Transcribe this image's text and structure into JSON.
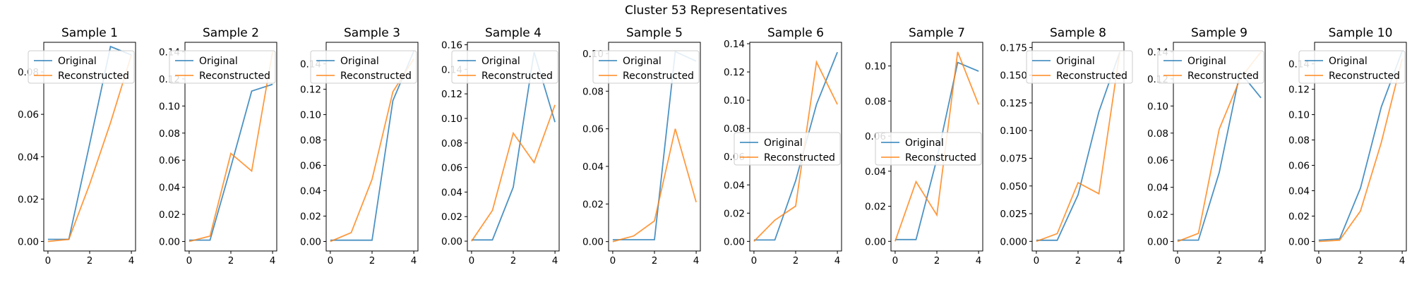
{
  "figure_title": "Cluster 53 Representatives",
  "colors": {
    "original": "#1f77b4",
    "reconstructed": "#ff7f0e"
  },
  "chart_data": [
    {
      "type": "line",
      "title": "Sample 1",
      "legend_placement": "upper-left",
      "xlim": [
        -0.2,
        4.2
      ],
      "ylim": [
        -0.0045,
        0.094
      ],
      "x_ticks": [
        0,
        2,
        4
      ],
      "y_ticks": [
        "0.00",
        "0.02",
        "0.04",
        "0.06",
        "0.08"
      ],
      "x": [
        0,
        1,
        2,
        3,
        4
      ],
      "series": [
        {
          "name": "Original",
          "values": [
            0.001,
            0.001,
            0.046,
            0.092,
            0.088
          ]
        },
        {
          "name": "Reconstructed",
          "values": [
            0.0,
            0.001,
            0.027,
            0.056,
            0.088
          ]
        }
      ]
    },
    {
      "type": "line",
      "title": "Sample 2",
      "legend_placement": "upper-left",
      "xlim": [
        -0.2,
        4.2
      ],
      "ylim": [
        -0.007,
        0.147
      ],
      "x_ticks": [
        0,
        2,
        4
      ],
      "y_ticks": [
        "0.00",
        "0.02",
        "0.04",
        "0.06",
        "0.08",
        "0.10",
        "0.12",
        "0.14"
      ],
      "x": [
        0,
        1,
        2,
        3,
        4
      ],
      "series": [
        {
          "name": "Original",
          "values": [
            0.001,
            0.001,
            0.055,
            0.111,
            0.116
          ]
        },
        {
          "name": "Reconstructed",
          "values": [
            0.0,
            0.004,
            0.065,
            0.052,
            0.14
          ]
        }
      ]
    },
    {
      "type": "line",
      "title": "Sample 3",
      "legend_placement": "upper-left",
      "xlim": [
        -0.2,
        4.2
      ],
      "ylim": [
        -0.0075,
        0.157
      ],
      "x_ticks": [
        0,
        2,
        4
      ],
      "y_ticks": [
        "0.00",
        "0.02",
        "0.04",
        "0.06",
        "0.08",
        "0.10",
        "0.12",
        "0.14"
      ],
      "x": [
        0,
        1,
        2,
        3,
        4
      ],
      "series": [
        {
          "name": "Original",
          "values": [
            0.001,
            0.001,
            0.001,
            0.111,
            0.15
          ]
        },
        {
          "name": "Reconstructed",
          "values": [
            0.0,
            0.007,
            0.049,
            0.118,
            0.144
          ]
        }
      ]
    },
    {
      "type": "line",
      "title": "Sample 4",
      "legend_placement": "upper-left",
      "xlim": [
        -0.2,
        4.2
      ],
      "ylim": [
        -0.008,
        0.162
      ],
      "x_ticks": [
        0,
        2,
        4
      ],
      "y_ticks": [
        "0.00",
        "0.02",
        "0.04",
        "0.06",
        "0.08",
        "0.10",
        "0.12",
        "0.14",
        "0.16"
      ],
      "x": [
        0,
        1,
        2,
        3,
        4
      ],
      "series": [
        {
          "name": "Original",
          "values": [
            0.001,
            0.001,
            0.044,
            0.154,
            0.097
          ]
        },
        {
          "name": "Reconstructed",
          "values": [
            0.0,
            0.025,
            0.088,
            0.064,
            0.111
          ]
        }
      ]
    },
    {
      "type": "line",
      "title": "Sample 5",
      "legend_placement": "upper-left",
      "xlim": [
        -0.2,
        4.2
      ],
      "ylim": [
        -0.005,
        0.106
      ],
      "x_ticks": [
        0,
        2,
        4
      ],
      "y_ticks": [
        "0.00",
        "0.02",
        "0.04",
        "0.06",
        "0.08",
        "0.10"
      ],
      "x": [
        0,
        1,
        2,
        3,
        4
      ],
      "series": [
        {
          "name": "Original",
          "values": [
            0.001,
            0.001,
            0.001,
            0.101,
            0.096
          ]
        },
        {
          "name": "Reconstructed",
          "values": [
            0.0,
            0.003,
            0.011,
            0.06,
            0.021
          ]
        }
      ]
    },
    {
      "type": "line",
      "title": "Sample 6",
      "legend_placement": "center-left",
      "xlim": [
        -0.2,
        4.2
      ],
      "ylim": [
        -0.0068,
        0.141
      ],
      "x_ticks": [
        0,
        2,
        4
      ],
      "y_ticks": [
        "0.00",
        "0.02",
        "0.04",
        "0.06",
        "0.08",
        "0.10",
        "0.12",
        "0.14"
      ],
      "x": [
        0,
        1,
        2,
        3,
        4
      ],
      "series": [
        {
          "name": "Original",
          "values": [
            0.001,
            0.001,
            0.043,
            0.097,
            0.134
          ]
        },
        {
          "name": "Reconstructed",
          "values": [
            0.0,
            0.015,
            0.025,
            0.127,
            0.097
          ]
        }
      ]
    },
    {
      "type": "line",
      "title": "Sample 7",
      "legend_placement": "center-left",
      "xlim": [
        -0.2,
        4.2
      ],
      "ylim": [
        -0.0055,
        0.1135
      ],
      "x_ticks": [
        0,
        2,
        4
      ],
      "y_ticks": [
        "0.00",
        "0.02",
        "0.04",
        "0.06",
        "0.08",
        "0.10"
      ],
      "x": [
        0,
        1,
        2,
        3,
        4
      ],
      "series": [
        {
          "name": "Original",
          "values": [
            0.001,
            0.001,
            0.047,
            0.102,
            0.097
          ]
        },
        {
          "name": "Reconstructed",
          "values": [
            0.0,
            0.034,
            0.015,
            0.108,
            0.078
          ]
        }
      ]
    },
    {
      "type": "line",
      "title": "Sample 8",
      "legend_placement": "upper-right",
      "xlim": [
        -0.2,
        4.2
      ],
      "ylim": [
        -0.0087,
        0.1797
      ],
      "x_ticks": [
        0,
        2,
        4
      ],
      "y_ticks": [
        "0.000",
        "0.025",
        "0.050",
        "0.075",
        "0.100",
        "0.125",
        "0.150",
        "0.175"
      ],
      "x": [
        0,
        1,
        2,
        3,
        4
      ],
      "series": [
        {
          "name": "Original",
          "values": [
            0.001,
            0.001,
            0.042,
            0.117,
            0.171
          ]
        },
        {
          "name": "Reconstructed",
          "values": [
            0.0,
            0.007,
            0.053,
            0.043,
            0.171
          ]
        }
      ]
    },
    {
      "type": "line",
      "title": "Sample 9",
      "legend_placement": "upper-left",
      "xlim": [
        -0.2,
        4.2
      ],
      "ylim": [
        -0.007,
        0.147
      ],
      "x_ticks": [
        0,
        2,
        4
      ],
      "y_ticks": [
        "0.00",
        "0.02",
        "0.04",
        "0.06",
        "0.08",
        "0.10",
        "0.12",
        "0.14"
      ],
      "x": [
        0,
        1,
        2,
        3,
        4
      ],
      "series": [
        {
          "name": "Original",
          "values": [
            0.001,
            0.001,
            0.051,
            0.125,
            0.106
          ]
        },
        {
          "name": "Reconstructed",
          "values": [
            0.0,
            0.006,
            0.083,
            0.12,
            0.14
          ]
        }
      ]
    },
    {
      "type": "line",
      "title": "Sample 10",
      "legend_placement": "upper-left",
      "xlim": [
        -0.2,
        4.2
      ],
      "ylim": [
        -0.0075,
        0.157
      ],
      "x_ticks": [
        0,
        2,
        4
      ],
      "y_ticks": [
        "0.00",
        "0.02",
        "0.04",
        "0.06",
        "0.08",
        "0.10",
        "0.12",
        "0.14"
      ],
      "x": [
        0,
        1,
        2,
        3,
        4
      ],
      "series": [
        {
          "name": "Original",
          "values": [
            0.001,
            0.002,
            0.042,
            0.106,
            0.15
          ]
        },
        {
          "name": "Reconstructed",
          "values": [
            0.0,
            0.001,
            0.024,
            0.078,
            0.144
          ]
        }
      ]
    }
  ]
}
